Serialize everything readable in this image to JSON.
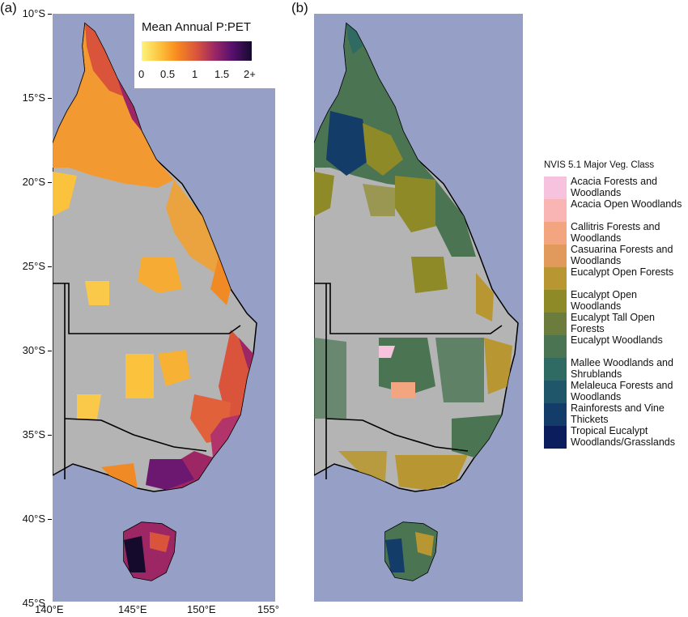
{
  "panels": [
    {
      "label": "(a)"
    },
    {
      "label": "(b)"
    }
  ],
  "lat_labels": [
    "10°S",
    "15°S",
    "20°S",
    "25°S",
    "30°S",
    "35°S",
    "40°S",
    "45°S"
  ],
  "lon_labels": [
    "140°E",
    "145°E",
    "150°E",
    "155°"
  ],
  "colorbar": {
    "title": "Mean Annual P:PET",
    "ticks": [
      "0",
      "0.5",
      "1",
      "1.5",
      "2+"
    ],
    "colors": [
      "#fcf47a",
      "#fdbd39",
      "#f88a1f",
      "#d9543b",
      "#9c2764",
      "#57106e",
      "#150a2c"
    ]
  },
  "legend": {
    "title": "NVIS 5.1 Major Veg. Class",
    "items": [
      {
        "label": "Acacia Forests and Woodlands",
        "color": "#f6c2de"
      },
      {
        "label": "Acacia Open Woodlands",
        "color": "#f8b5b3"
      },
      {
        "label": "Callitris Forests and Woodlands",
        "color": "#f3a580"
      },
      {
        "label": "Casuarina Forests and Woodlands",
        "color": "#e29a5c"
      },
      {
        "label": "Eucalypt Open Forests",
        "color": "#b89732"
      },
      {
        "label": "Eucalypt Open Woodlands",
        "color": "#8f8a28"
      },
      {
        "label": "Eucalypt Tall Open Forests",
        "color": "#6c7c3c"
      },
      {
        "label": "Eucalypt Woodlands",
        "color": "#4a7452"
      },
      {
        "label": "Mallee Woodlands and Shrublands",
        "color": "#2f6a63"
      },
      {
        "label": "Melaleuca Forests and Woodlands",
        "color": "#1f566a"
      },
      {
        "label": "Rainforests and Vine Thickets",
        "color": "#133c68"
      },
      {
        "label": "Tropical Eucalypt Woodlands/Grasslands",
        "color": "#0c1d5e"
      }
    ]
  },
  "colors": {
    "ocean": "#96a0c6",
    "land": "#b4b4b4",
    "border": "#000000"
  }
}
